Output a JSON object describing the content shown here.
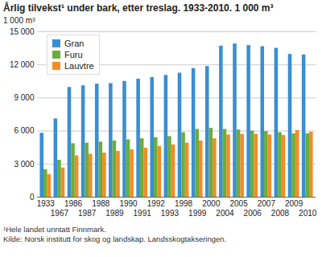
{
  "chart_data": {
    "type": "bar",
    "title": "Årlig tilvekst¹ under bark, etter treslag. 1933-2010. 1 000 m³",
    "y_label": "1 000 m³",
    "footnote": "¹Hele landet unntatt Finnmark.",
    "source": "Kilde: Norsk institutt for skog og landskap. Landsskogtakseringen.",
    "categories": [
      "1933",
      "1967",
      "1986",
      "1987",
      "1988",
      "1989",
      "1990",
      "1991",
      "1992",
      "1993",
      "1998",
      "1999",
      "2000",
      "2004",
      "2005",
      "2006",
      "2007",
      "2008",
      "2009",
      "2010"
    ],
    "series": [
      {
        "name": "Gran",
        "color": "#3a8fd0",
        "values": [
          5800,
          7100,
          9950,
          10100,
          10250,
          10300,
          10500,
          10700,
          10850,
          11050,
          11250,
          11650,
          11850,
          13700,
          13900,
          13750,
          13650,
          13500,
          12950,
          12900
        ]
      },
      {
        "name": "Furu",
        "color": "#6aae3c",
        "values": [
          2500,
          3350,
          4850,
          4900,
          5000,
          5100,
          5200,
          5300,
          5400,
          5500,
          5850,
          6150,
          6250,
          6150,
          6100,
          6000,
          5950,
          5850,
          5750,
          5750
        ]
      },
      {
        "name": "Lauvtre",
        "color": "#f28c28",
        "values": [
          2050,
          2650,
          3750,
          3900,
          4000,
          4150,
          4300,
          4450,
          4600,
          4750,
          4900,
          5100,
          5300,
          5650,
          5700,
          5700,
          5650,
          5600,
          6050,
          5900
        ]
      }
    ],
    "ylim": [
      0,
      15000
    ],
    "yticks": [
      0,
      {
        "value": 3000,
        "label": "3 000"
      },
      {
        "value": 6000,
        "label": "6 000"
      },
      {
        "value": 9000,
        "label": "9 000"
      },
      {
        "value": 12000,
        "label": "12 000"
      },
      {
        "value": 15000,
        "label": "15 000"
      }
    ],
    "grid": true,
    "legend": "top-left"
  }
}
